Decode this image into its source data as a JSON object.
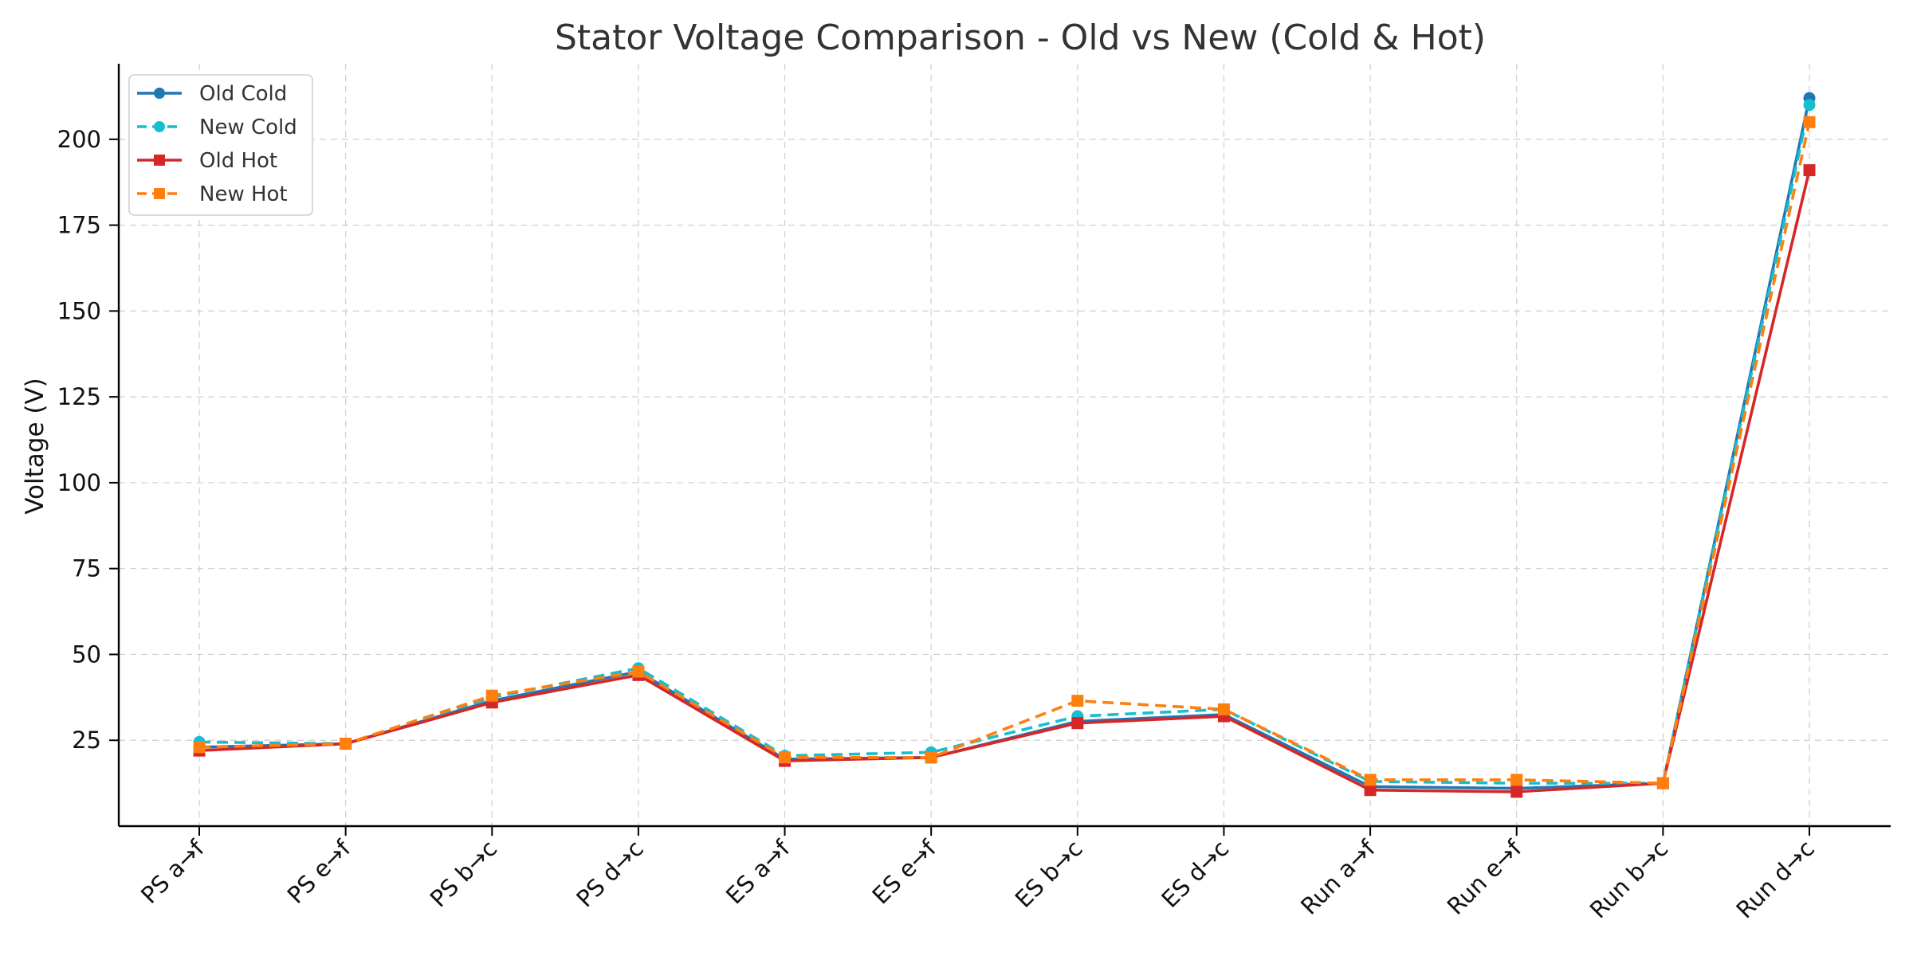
{
  "chart_data": {
    "type": "line",
    "title": "Stator Voltage Comparison - Old vs New (Cold & Hot)",
    "xlabel": "",
    "ylabel": "Voltage (V)",
    "categories": [
      "PS a→f",
      "PS e→f",
      "PS b→c",
      "PS d→c",
      "ES a→f",
      "ES e→f",
      "ES b→c",
      "ES d→c",
      "Run a→f",
      "Run e→f",
      "Run b→c",
      "Run d→c"
    ],
    "ylim": [
      0,
      222
    ],
    "yticks": [
      25,
      50,
      75,
      100,
      125,
      150,
      175,
      200
    ],
    "grid": true,
    "legend_position": "top-left",
    "series": [
      {
        "name": "Old Cold",
        "color": "#1f77b4",
        "linestyle": "solid",
        "marker": "circle",
        "values": [
          23.0,
          24.0,
          36.5,
          45.0,
          19.5,
          20.0,
          30.5,
          32.5,
          11.5,
          11.0,
          12.5,
          212.0
        ]
      },
      {
        "name": "New Cold",
        "color": "#17becf",
        "linestyle": "dashed",
        "marker": "circle",
        "values": [
          24.5,
          24.0,
          37.5,
          46.0,
          20.5,
          21.5,
          32.0,
          34.0,
          13.0,
          12.5,
          12.5,
          210.0
        ]
      },
      {
        "name": "Old Hot",
        "color": "#d62728",
        "linestyle": "solid",
        "marker": "square",
        "values": [
          22.0,
          24.0,
          36.0,
          44.0,
          19.0,
          20.0,
          30.0,
          32.0,
          10.5,
          10.0,
          12.5,
          191.0
        ]
      },
      {
        "name": "New Hot",
        "color": "#ff7f0e",
        "linestyle": "dashed",
        "marker": "square",
        "values": [
          23.0,
          24.0,
          38.0,
          45.0,
          20.0,
          20.0,
          36.5,
          34.0,
          13.5,
          13.5,
          12.5,
          205.0
        ]
      }
    ]
  }
}
